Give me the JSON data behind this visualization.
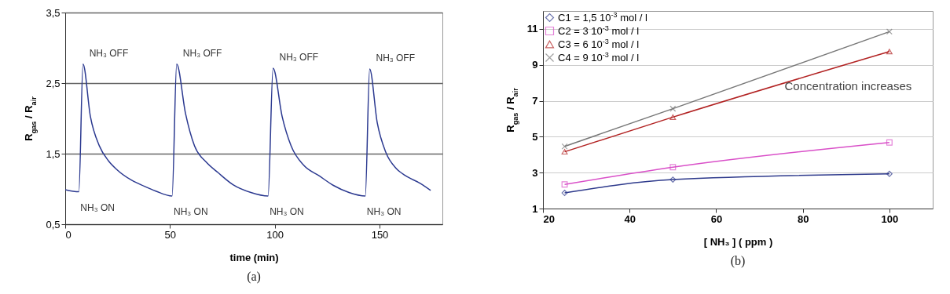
{
  "chart_data": [
    {
      "type": "line",
      "title": "(a)",
      "xlabel": "time (min)",
      "ylabel": "R$_{gas}$ / R$_{air}$",
      "xlim": [
        0,
        180
      ],
      "ylim": [
        0.5,
        3.5
      ],
      "xticks": [
        0,
        50,
        100,
        150
      ],
      "yticks": [
        {
          "value": 0.5,
          "label": "0,5"
        },
        {
          "value": 1.5,
          "label": "1,5"
        },
        {
          "value": 2.5,
          "label": "2,5"
        },
        {
          "value": 3.5,
          "label": "3,5"
        }
      ],
      "grid": "y",
      "x": [
        0,
        6.5,
        8.5,
        12,
        16.3,
        20.6,
        24.8,
        31.9,
        37.6,
        43.2,
        51,
        53.2,
        57.4,
        61.7,
        67.3,
        73,
        80.1,
        88.6,
        96.8,
        99.2,
        103.5,
        107.8,
        114,
        121,
        128,
        135.4,
        143.2,
        145.3,
        148.9,
        153,
        158,
        162.3,
        169.4,
        174.4
      ],
      "series": [
        {
          "color": "#2b3990",
          "values": [
            0.99,
            0.96,
            2.77,
            2.03,
            1.61,
            1.4,
            1.27,
            1.12,
            1.04,
            0.97,
            0.9,
            2.77,
            2.07,
            1.61,
            1.38,
            1.23,
            1.06,
            0.95,
            0.9,
            2.71,
            2.03,
            1.61,
            1.33,
            1.19,
            1.05,
            0.95,
            0.9,
            2.7,
            1.94,
            1.52,
            1.29,
            1.19,
            1.08,
            0.98
          ]
        }
      ],
      "annotations": [
        {
          "text": "NH₃ OFF",
          "x": 8.5,
          "y": 2.77
        },
        {
          "text": "NH₃ OFF",
          "x": 53.2,
          "y": 2.77
        },
        {
          "text": "NH₃ OFF",
          "x": 99.2,
          "y": 2.71
        },
        {
          "text": "NH₃ OFF",
          "x": 145.3,
          "y": 2.7
        },
        {
          "text": "NH₃ ON",
          "x": 6.5,
          "y": 0.96
        },
        {
          "text": "NH₃ ON",
          "x": 51,
          "y": 0.9
        },
        {
          "text": "NH₃ ON",
          "x": 96.8,
          "y": 0.9
        },
        {
          "text": "NH₃ ON",
          "x": 143.2,
          "y": 0.9
        }
      ]
    },
    {
      "type": "line",
      "title": "(b)",
      "xlabel": "[ NH₃ ] ( ppm )",
      "ylabel": "R$_{gas}$ / R$_{air}$",
      "xlim": [
        20,
        110
      ],
      "ylim": [
        1,
        12
      ],
      "xticks": [
        20,
        40,
        60,
        80,
        100
      ],
      "yticks": [
        1,
        3,
        5,
        7,
        9,
        11
      ],
      "grid": "y",
      "legend": "top left",
      "x": [
        25,
        50,
        100
      ],
      "series": [
        {
          "name": "C1 = 1,5 10$^{-3}$ mol / l",
          "color": "#2e3a8c",
          "marker": "diamond",
          "values": [
            1.87,
            2.61,
            2.93
          ]
        },
        {
          "name": "C2 = 3 10$^{-3}$ mol / l",
          "color": "#d94fc8",
          "marker": "square",
          "values": [
            2.34,
            3.3,
            4.68
          ]
        },
        {
          "name": "C3 = 6 10$^{-3}$ mol / l",
          "color": "#b22222",
          "marker": "triangle",
          "values": [
            4.16,
            6.09,
            9.74
          ]
        },
        {
          "name": "C4 = 9 10$^{-3}$ mol / l",
          "color": "#777777",
          "marker": "cross",
          "values": [
            4.46,
            6.56,
            10.85
          ]
        }
      ],
      "annotations": [
        "Concentration increases"
      ]
    }
  ]
}
